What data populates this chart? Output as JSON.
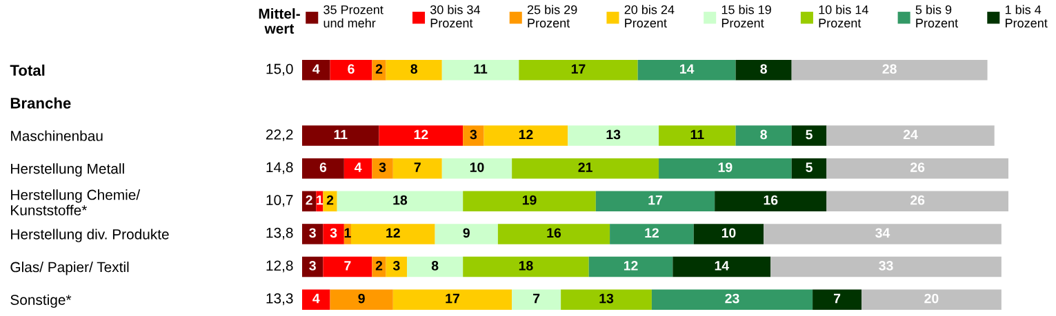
{
  "chart_data": {
    "type": "bar",
    "orientation": "horizontal",
    "stacked": true,
    "data_labels": true,
    "legend": "top",
    "grid": false,
    "categories": [
      "Total",
      "Branche",
      "Maschinenbau",
      "Herstellung Metall",
      "Herstellung Chemie/\nKunststoffe*",
      "Herstellung div. Produkte",
      "Glas/ Papier/ Textil",
      "Sonstige*"
    ],
    "series": [
      {
        "name": "35 Prozent\nund mehr",
        "color": "#800000",
        "values": [
          4,
          null,
          11,
          6,
          2,
          3,
          3,
          null
        ]
      },
      {
        "name": "30 bis 34\nProzent",
        "color": "#ff0000",
        "values": [
          6,
          null,
          12,
          4,
          1,
          3,
          7,
          4
        ]
      },
      {
        "name": "25 bis 29\nProzent",
        "color": "#ff9900",
        "values": [
          2,
          null,
          3,
          3,
          null,
          1,
          2,
          9
        ]
      },
      {
        "name": "20 bis 24\nProzent",
        "color": "#ffcc00",
        "values": [
          8,
          null,
          12,
          7,
          2,
          12,
          3,
          17
        ]
      },
      {
        "name": "15 bis 19\nProzent",
        "color": "#ccffcc",
        "values": [
          11,
          null,
          13,
          10,
          18,
          9,
          8,
          7
        ]
      },
      {
        "name": "10 bis 14\nProzent",
        "color": "#99cc00",
        "values": [
          17,
          null,
          11,
          21,
          19,
          16,
          18,
          13
        ]
      },
      {
        "name": "5 bis 9\nProzent",
        "color": "#339966",
        "values": [
          14,
          null,
          8,
          19,
          17,
          12,
          12,
          23
        ]
      },
      {
        "name": "1 bis 4\nProzent",
        "color": "#003300",
        "values": [
          8,
          null,
          5,
          5,
          16,
          10,
          14,
          7
        ]
      },
      {
        "color": "#c0c0c0",
        "values": [
          28,
          null,
          24,
          26,
          26,
          34,
          33,
          20
        ]
      }
    ],
    "annotations": [
      "Mittel-\nwert",
      "15,0",
      "22,2",
      "14,8",
      "10,7",
      "13,8",
      "12,8",
      "13,3"
    ]
  }
}
